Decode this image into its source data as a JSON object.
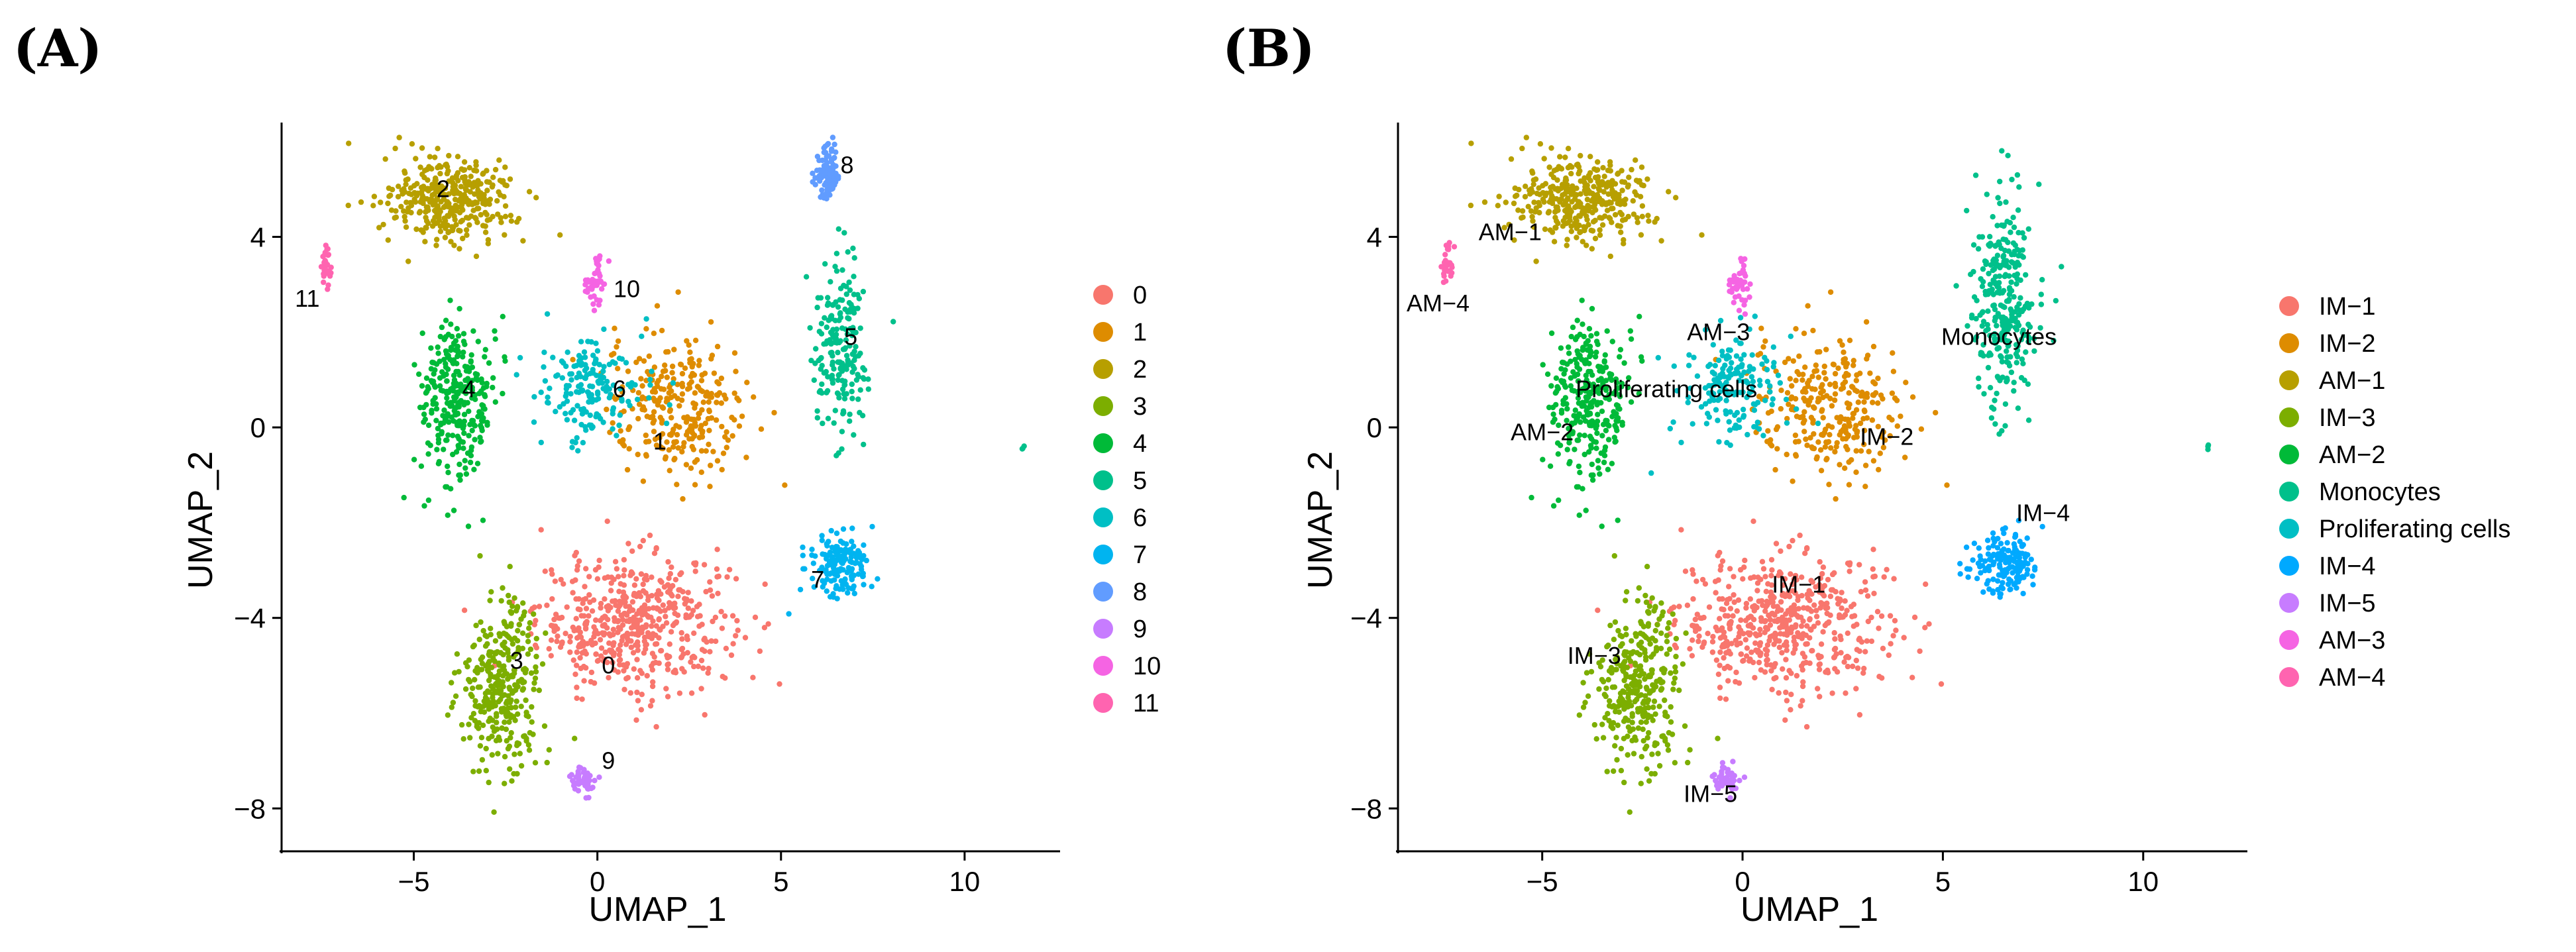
{
  "figure": {
    "panel_a_letter": "(A)",
    "panel_b_letter": "(B)"
  },
  "chart_data": [
    {
      "type": "scatter",
      "panel": "(A)",
      "title": "",
      "xlabel": "UMAP_1",
      "ylabel": "UMAP_2",
      "xlim": [
        -8.6,
        12.6
      ],
      "ylim": [
        -8.9,
        6.4
      ],
      "xticks": [
        -5,
        0,
        5,
        10
      ],
      "xtick_labels": [
        "−5",
        "0",
        "5",
        "10"
      ],
      "yticks": [
        -8,
        -4,
        0,
        4
      ],
      "ytick_labels": [
        "−8",
        "−4",
        "0",
        "4"
      ],
      "grid": false,
      "legend_position": "right",
      "legend": [
        {
          "label": "0",
          "color": "#F8766D"
        },
        {
          "label": "1",
          "color": "#DE8C00"
        },
        {
          "label": "2",
          "color": "#B79F00"
        },
        {
          "label": "3",
          "color": "#7CAE00"
        },
        {
          "label": "4",
          "color": "#00BA38"
        },
        {
          "label": "5",
          "color": "#00C08B"
        },
        {
          "label": "6",
          "color": "#00BFC4"
        },
        {
          "label": "7",
          "color": "#00B4F0"
        },
        {
          "label": "8",
          "color": "#619CFF"
        },
        {
          "label": "9",
          "color": "#C77CFF"
        },
        {
          "label": "10",
          "color": "#F564E3"
        },
        {
          "label": "11",
          "color": "#FF64B0"
        }
      ],
      "cluster_labels": [
        {
          "text": "0",
          "x": 0.3,
          "y": -5.0
        },
        {
          "text": "1",
          "x": 1.7,
          "y": -0.3
        },
        {
          "text": "2",
          "x": -4.2,
          "y": 5.0
        },
        {
          "text": "3",
          "x": -2.2,
          "y": -4.9
        },
        {
          "text": "4",
          "x": -3.5,
          "y": 0.8
        },
        {
          "text": "5",
          "x": 6.9,
          "y": 1.9
        },
        {
          "text": "6",
          "x": 0.6,
          "y": 0.8
        },
        {
          "text": "7",
          "x": 6.0,
          "y": -3.2
        },
        {
          "text": "8",
          "x": 6.8,
          "y": 5.5
        },
        {
          "text": "9",
          "x": 0.3,
          "y": -7.0
        },
        {
          "text": "10",
          "x": 0.8,
          "y": 2.9
        },
        {
          "text": "11",
          "x": -7.9,
          "y": 2.7
        }
      ],
      "clusters": [
        {
          "id": "0",
          "x": 1.0,
          "y": -4.1,
          "sx": 2.4,
          "sy": 1.3,
          "n": 520
        },
        {
          "id": "1",
          "x": 2.2,
          "y": 0.4,
          "sx": 1.8,
          "sy": 1.4,
          "n": 280
        },
        {
          "id": "2",
          "x": -4.0,
          "y": 4.8,
          "sx": 1.6,
          "sy": 0.8,
          "n": 360
        },
        {
          "id": "3",
          "x": -2.6,
          "y": -5.4,
          "sx": 1.0,
          "sy": 1.5,
          "n": 320
        },
        {
          "id": "4",
          "x": -3.8,
          "y": 0.6,
          "sx": 0.9,
          "sy": 1.6,
          "n": 300
        },
        {
          "id": "5",
          "x": 6.6,
          "y": 1.6,
          "sx": 0.7,
          "sy": 1.6,
          "n": 200
        },
        {
          "id": "6",
          "x": -0.2,
          "y": 0.9,
          "sx": 1.2,
          "sy": 1.1,
          "n": 170
        },
        {
          "id": "7",
          "x": 6.6,
          "y": -2.9,
          "sx": 0.8,
          "sy": 0.6,
          "n": 160
        },
        {
          "id": "8",
          "x": 6.3,
          "y": 5.3,
          "sx": 0.3,
          "sy": 0.5,
          "n": 110
        },
        {
          "id": "9",
          "x": -0.4,
          "y": -7.4,
          "sx": 0.3,
          "sy": 0.3,
          "n": 45
        },
        {
          "id": "10",
          "x": -0.1,
          "y": 3.0,
          "sx": 0.3,
          "sy": 0.5,
          "n": 45
        },
        {
          "id": "11",
          "x": -7.4,
          "y": 3.4,
          "sx": 0.15,
          "sy": 0.4,
          "n": 30
        },
        {
          "id": "5",
          "x": 11.6,
          "y": -0.4,
          "sx": 0.05,
          "sy": 0.05,
          "n": 3
        }
      ]
    },
    {
      "type": "scatter",
      "panel": "(B)",
      "title": "",
      "xlabel": "UMAP_1",
      "ylabel": "UMAP_2",
      "xlim": [
        -8.6,
        12.6
      ],
      "ylim": [
        -8.9,
        6.4
      ],
      "xticks": [
        -5,
        0,
        5,
        10
      ],
      "xtick_labels": [
        "−5",
        "0",
        "5",
        "10"
      ],
      "yticks": [
        -8,
        -4,
        0,
        4
      ],
      "ytick_labels": [
        "−8",
        "−4",
        "0",
        "4"
      ],
      "grid": false,
      "legend_position": "right",
      "legend": [
        {
          "label": "IM−1",
          "color": "#F8766D"
        },
        {
          "label": "IM−2",
          "color": "#DE8C00"
        },
        {
          "label": "AM−1",
          "color": "#B79F00"
        },
        {
          "label": "IM−3",
          "color": "#7CAE00"
        },
        {
          "label": "AM−2",
          "color": "#00BA38"
        },
        {
          "label": "Monocytes",
          "color": "#00C08B"
        },
        {
          "label": "Proliferating cells",
          "color": "#00BFC4"
        },
        {
          "label": "IM−4",
          "color": "#00A9FF"
        },
        {
          "label": "IM−5",
          "color": "#C77CFF"
        },
        {
          "label": "AM−3",
          "color": "#F564E3"
        },
        {
          "label": "AM−4",
          "color": "#FF64B0"
        }
      ],
      "cluster_labels": [
        {
          "text": "IM−1",
          "x": 1.4,
          "y": -3.3
        },
        {
          "text": "IM−2",
          "x": 3.6,
          "y": -0.2
        },
        {
          "text": "AM−1",
          "x": -5.8,
          "y": 4.1
        },
        {
          "text": "IM−3",
          "x": -3.7,
          "y": -4.8
        },
        {
          "text": "AM−2",
          "x": -5.0,
          "y": -0.1
        },
        {
          "text": "Monocytes",
          "x": 6.4,
          "y": 1.9
        },
        {
          "text": "Proliferating cells",
          "x": -1.9,
          "y": 0.8
        },
        {
          "text": "IM−4",
          "x": 7.5,
          "y": -1.8
        },
        {
          "text": "IM−5",
          "x": -0.8,
          "y": -7.7
        },
        {
          "text": "AM−3",
          "x": -0.6,
          "y": 2.0
        },
        {
          "text": "AM−4",
          "x": -7.6,
          "y": 2.6
        }
      ],
      "clusters": [
        {
          "id": "IM−1",
          "x": 1.0,
          "y": -4.1,
          "sx": 2.4,
          "sy": 1.3,
          "n": 520
        },
        {
          "id": "IM−2",
          "x": 2.2,
          "y": 0.4,
          "sx": 1.8,
          "sy": 1.4,
          "n": 280
        },
        {
          "id": "AM−1",
          "x": -4.0,
          "y": 4.8,
          "sx": 1.6,
          "sy": 0.8,
          "n": 360
        },
        {
          "id": "IM−3",
          "x": -2.6,
          "y": -5.4,
          "sx": 1.0,
          "sy": 1.5,
          "n": 320
        },
        {
          "id": "AM−2",
          "x": -3.8,
          "y": 0.6,
          "sx": 0.9,
          "sy": 1.6,
          "n": 300
        },
        {
          "id": "Monocytes",
          "x": 6.5,
          "y": 2.6,
          "sx": 0.7,
          "sy": 2.0,
          "n": 300
        },
        {
          "id": "Proliferating cells",
          "x": -0.2,
          "y": 0.9,
          "sx": 1.2,
          "sy": 1.1,
          "n": 170
        },
        {
          "id": "IM−4",
          "x": 6.6,
          "y": -2.9,
          "sx": 0.8,
          "sy": 0.6,
          "n": 160
        },
        {
          "id": "IM−5",
          "x": -0.4,
          "y": -7.4,
          "sx": 0.3,
          "sy": 0.3,
          "n": 45
        },
        {
          "id": "AM−3",
          "x": -0.1,
          "y": 3.0,
          "sx": 0.3,
          "sy": 0.5,
          "n": 45
        },
        {
          "id": "AM−4",
          "x": -7.4,
          "y": 3.4,
          "sx": 0.15,
          "sy": 0.4,
          "n": 30
        },
        {
          "id": "Monocytes",
          "x": 11.6,
          "y": -0.4,
          "sx": 0.05,
          "sy": 0.05,
          "n": 3
        }
      ]
    }
  ]
}
